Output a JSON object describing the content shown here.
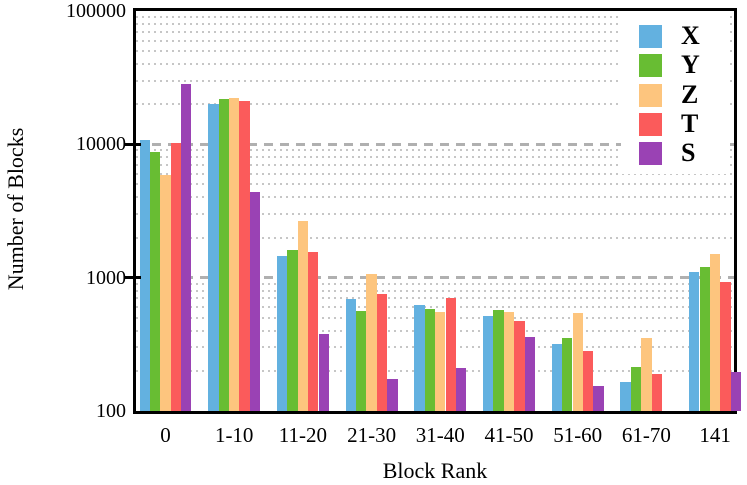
{
  "chart_data": {
    "type": "bar",
    "scale": "log-y",
    "title": "",
    "xlabel": "Block Rank",
    "ylabel": "Number of Blocks",
    "ylim": [
      100,
      100000
    ],
    "legend_position": "top-right-inside",
    "y_ticks": [
      {
        "label": "100000",
        "value": 100000
      },
      {
        "label": "10000",
        "value": 10000
      },
      {
        "label": "1000",
        "value": 1000
      },
      {
        "label": "100",
        "value": 100
      }
    ],
    "grid": {
      "major_values": [
        10000,
        1000
      ],
      "minor_values": [
        90000,
        80000,
        70000,
        60000,
        50000,
        40000,
        30000,
        20000,
        9000,
        8000,
        7000,
        6000,
        5000,
        4000,
        3000,
        2000,
        900,
        800,
        700,
        600,
        500,
        400,
        300,
        200
      ]
    },
    "categories": [
      "0",
      "1-10",
      "11-20",
      "21-30",
      "31-40",
      "41-50",
      "51-60",
      "61-70",
      "141"
    ],
    "series": [
      {
        "name": "X",
        "color": "#63b1e0",
        "values": [
          10800,
          20000,
          1450,
          690,
          620,
          520,
          320,
          165,
          1100
        ]
      },
      {
        "name": "Y",
        "color": "#68bd33",
        "values": [
          8800,
          21800,
          1600,
          560,
          580,
          570,
          355,
          215,
          1200
        ]
      },
      {
        "name": "Z",
        "color": "#fdc57e",
        "values": [
          5900,
          22100,
          2650,
          1060,
          550,
          550,
          545,
          350,
          1500
        ]
      },
      {
        "name": "T",
        "color": "#fb5b5b",
        "values": [
          10200,
          21000,
          1560,
          750,
          700,
          470,
          280,
          190,
          930
        ]
      },
      {
        "name": "S",
        "color": "#9a42b4",
        "values": [
          28500,
          4400,
          380,
          175,
          210,
          360,
          155,
          null,
          195
        ]
      }
    ],
    "colors": {
      "grid_major": "#b0b0b0",
      "grid_minor": "#c6c6c6",
      "axis": "#000000",
      "background": "#ffffff"
    }
  }
}
